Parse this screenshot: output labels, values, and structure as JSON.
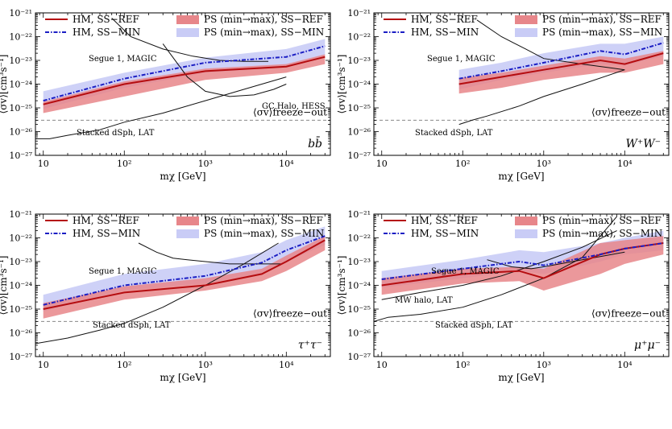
{
  "figure": {
    "xlabel": "mχ [GeV]",
    "ylabel": "⟨σv⟩[cm³s⁻¹]"
  },
  "legend": {
    "hm_ref": "HM, SS−REF",
    "hm_min": "HM, SS−MIN",
    "ps_ref": "PS (min→max), SS−REF",
    "ps_min": "PS (min→max), SS−MIN"
  },
  "colors": {
    "ref_line": "#b50d10",
    "min_line": "#1b1ec4",
    "ref_band": "#e7868a",
    "min_band": "#c9ccf6",
    "limit": "#111111",
    "freeze": "#888888"
  },
  "ticks": {
    "x": [
      "10",
      "10²",
      "10³",
      "10⁴"
    ],
    "y": [
      "10⁻²⁷",
      "10⁻²⁶",
      "10⁻²⁵",
      "10⁻²⁴",
      "10⁻²³",
      "10⁻²²",
      "10⁻²¹"
    ]
  },
  "freeze_label": "⟨σv⟩freeze−out",
  "chart_data": [
    {
      "type": "line",
      "title": "bb̄",
      "channel": "bb̄",
      "xlabel": "mχ [GeV]",
      "ylabel": "⟨σv⟩[cm³s⁻¹]",
      "xscale": "log",
      "yscale": "log",
      "xlim": [
        8,
        35000
      ],
      "ylim": [
        1e-27,
        1e-21
      ],
      "freeze_out": 3e-26,
      "series": [
        {
          "name": "HM, SS−REF",
          "style": "ref",
          "x": [
            10,
            100,
            1000,
            10000,
            30000
          ],
          "y": [
            1.4e-25,
            1e-24,
            3.5e-24,
            5.5e-24,
            1.4e-23
          ]
        },
        {
          "name": "HM, SS−MIN",
          "style": "min",
          "x": [
            10,
            100,
            1000,
            10000,
            30000
          ],
          "y": [
            2e-25,
            1.7e-24,
            8e-24,
            1.4e-23,
            4e-23
          ]
        }
      ],
      "bands": [
        {
          "name": "PS (min→max), SS−MIN",
          "style": "min",
          "x": [
            10,
            100,
            1000,
            10000,
            30000
          ],
          "low": [
            9e-26,
            7e-25,
            3e-24,
            5e-24,
            1.5e-23
          ],
          "high": [
            5e-25,
            3e-24,
            1.3e-23,
            3e-23,
            8e-23
          ]
        },
        {
          "name": "PS (min→max), SS−REF",
          "style": "ref",
          "x": [
            10,
            100,
            1000,
            10000,
            30000
          ],
          "low": [
            6e-26,
            3e-25,
            1.5e-24,
            3e-24,
            7e-24
          ],
          "high": [
            1.8e-25,
            1.3e-24,
            4.5e-24,
            7e-24,
            1.8e-23
          ]
        }
      ],
      "limits": [
        {
          "name": "Segue 1, MAGIC",
          "x": [
            70,
            120,
            300,
            700,
            1500,
            3000,
            6000
          ],
          "y": [
            6e-22,
            1e-22,
            3e-23,
            1.5e-23,
            1e-23,
            9e-24,
            9e-24
          ]
        },
        {
          "name": "GC Halo, HESS",
          "x": [
            300,
            600,
            1000,
            2000,
            4000,
            7000,
            10000
          ],
          "y": [
            5e-23,
            2e-24,
            5e-25,
            3e-25,
            3.5e-25,
            6e-25,
            1e-24
          ]
        },
        {
          "name": "Stacked dSph, LAT",
          "x": [
            8,
            12,
            20,
            50,
            100,
            300,
            1000,
            3000,
            10000
          ],
          "y": [
            5e-27,
            5e-27,
            7e-27,
            1.2e-26,
            2.5e-26,
            6e-26,
            2e-25,
            6e-25,
            2e-24
          ]
        }
      ],
      "annotations": [
        "Segue 1, MAGIC",
        "GC Halo, HESS",
        "Stacked dSph, LAT"
      ]
    },
    {
      "type": "line",
      "title": "W⁺W⁻",
      "channel": "W⁺W⁻",
      "xlabel": "mχ [GeV]",
      "ylabel": "⟨σv⟩[cm³s⁻¹]",
      "xscale": "log",
      "yscale": "log",
      "xlim": [
        8,
        35000
      ],
      "ylim": [
        1e-27,
        1e-21
      ],
      "freeze_out": 3e-26,
      "series": [
        {
          "name": "HM, SS−REF",
          "style": "ref",
          "x": [
            90,
            300,
            1000,
            5000,
            10000,
            30000
          ],
          "y": [
            1e-24,
            2e-24,
            4e-24,
            1e-23,
            7e-24,
            2e-23
          ]
        },
        {
          "name": "HM, SS−MIN",
          "style": "min",
          "x": [
            90,
            300,
            1000,
            5000,
            10000,
            30000
          ],
          "y": [
            1.7e-24,
            3.5e-24,
            8e-24,
            2.5e-23,
            1.8e-23,
            5.5e-23
          ]
        }
      ],
      "bands": [
        {
          "name": "PS (min→max), SS−MIN",
          "style": "min",
          "x": [
            90,
            300,
            1000,
            5000,
            10000,
            30000
          ],
          "low": [
            6e-25,
            1.5e-24,
            3e-24,
            7e-24,
            6e-24,
            1.5e-23
          ],
          "high": [
            4e-24,
            8e-24,
            2e-23,
            5e-23,
            5e-23,
            1e-22
          ]
        },
        {
          "name": "PS (min→max), SS−REF",
          "style": "ref",
          "x": [
            90,
            300,
            1000,
            5000,
            10000,
            30000
          ],
          "low": [
            4e-25,
            7e-25,
            1.5e-24,
            3e-24,
            3e-24,
            7e-24
          ],
          "high": [
            1.8e-24,
            3e-24,
            6e-24,
            1.5e-23,
            1.2e-23,
            2.5e-23
          ]
        }
      ],
      "limits": [
        {
          "name": "Segue 1, MAGIC",
          "x": [
            150,
            300,
            600,
            1000,
            3000,
            10000
          ],
          "y": [
            5e-22,
            1e-22,
            3e-23,
            1.2e-23,
            7e-24,
            4e-24
          ]
        },
        {
          "name": "Stacked dSph, LAT",
          "x": [
            90,
            130,
            200,
            500,
            1000,
            3000,
            10000
          ],
          "y": [
            2e-26,
            3e-26,
            4.5e-26,
            1.2e-25,
            3e-25,
            1e-24,
            4e-24
          ]
        }
      ],
      "annotations": [
        "Segue 1, MAGIC",
        "Stacked dSph, LAT"
      ]
    },
    {
      "type": "line",
      "title": "τ⁺τ⁻",
      "channel": "τ⁺τ⁻",
      "xlabel": "mχ [GeV]",
      "ylabel": "⟨σv⟩[cm³s⁻¹]",
      "xscale": "log",
      "yscale": "log",
      "xlim": [
        8,
        35000
      ],
      "ylim": [
        1e-27,
        1e-21
      ],
      "freeze_out": 3e-26,
      "series": [
        {
          "name": "HM, SS−REF",
          "style": "ref",
          "x": [
            10,
            100,
            1000,
            5000,
            10000,
            30000
          ],
          "y": [
            1e-25,
            5e-25,
            1e-24,
            3e-24,
            1e-23,
            8e-23
          ]
        },
        {
          "name": "HM, SS−MIN",
          "style": "min",
          "x": [
            10,
            100,
            1000,
            5000,
            10000,
            30000
          ],
          "y": [
            1.5e-25,
            1e-24,
            2.5e-24,
            9e-24,
            3e-23,
            1.2e-22
          ]
        }
      ],
      "bands": [
        {
          "name": "PS (min→max), SS−MIN",
          "style": "min",
          "x": [
            10,
            100,
            1000,
            5000,
            10000,
            30000
          ],
          "low": [
            8e-26,
            6e-25,
            1.2e-24,
            3e-24,
            1e-23,
            5e-23
          ],
          "high": [
            4e-25,
            3e-24,
            8e-24,
            2.5e-23,
            8e-23,
            3e-22
          ]
        },
        {
          "name": "PS (min→max), SS−REF",
          "style": "ref",
          "x": [
            10,
            100,
            1000,
            5000,
            10000,
            30000
          ],
          "low": [
            4e-26,
            2.5e-25,
            6e-25,
            1.5e-24,
            4e-24,
            3e-23
          ],
          "high": [
            1.8e-25,
            9e-25,
            2e-24,
            5e-24,
            1.8e-23,
            1.2e-22
          ]
        }
      ],
      "limits": [
        {
          "name": "Segue 1, MAGIC",
          "x": [
            150,
            250,
            400,
            600,
            1000,
            2000,
            5000,
            9000
          ],
          "y": [
            6e-23,
            2.5e-23,
            1.4e-23,
            1.2e-23,
            1e-23,
            8e-24,
            8e-24,
            8e-24
          ]
        },
        {
          "name": "Stacked dSph, LAT",
          "x": [
            8,
            20,
            50,
            100,
            300,
            1000,
            3000,
            8000
          ],
          "y": [
            3.5e-27,
            6e-27,
            1.3e-26,
            2.5e-26,
            1.2e-25,
            1e-24,
            8e-24,
            6e-23
          ]
        }
      ],
      "annotations": [
        "Segue 1, MAGIC",
        "Stacked dSph, LAT"
      ]
    },
    {
      "type": "line",
      "title": "μ⁺μ⁻",
      "channel": "μ⁺μ⁻",
      "xlabel": "mχ [GeV]",
      "ylabel": "⟨σv⟩[cm³s⁻¹]",
      "xscale": "log",
      "yscale": "log",
      "xlim": [
        8,
        35000
      ],
      "ylim": [
        1e-27,
        1e-21
      ],
      "freeze_out": 3e-26,
      "series": [
        {
          "name": "HM, SS−REF",
          "style": "ref",
          "x": [
            10,
            100,
            500,
            1000,
            5000,
            10000,
            30000
          ],
          "y": [
            1e-24,
            3e-24,
            4e-24,
            2e-24,
            2e-23,
            3.5e-23,
            6e-23
          ]
        },
        {
          "name": "HM, SS−MIN",
          "style": "min",
          "x": [
            10,
            100,
            500,
            1000,
            5000,
            10000,
            30000
          ],
          "y": [
            1.8e-24,
            5e-24,
            1e-23,
            7e-24,
            2e-23,
            3.5e-23,
            6e-23
          ]
        }
      ],
      "bands": [
        {
          "name": "PS (min→max), SS−MIN",
          "style": "min",
          "x": [
            10,
            100,
            500,
            1000,
            5000,
            10000,
            30000
          ],
          "low": [
            8e-25,
            2e-24,
            4e-24,
            3e-24,
            1e-23,
            2e-23,
            3e-23
          ],
          "high": [
            4e-24,
            1.2e-23,
            3e-23,
            2.5e-23,
            6e-23,
            1e-22,
            2e-22
          ]
        },
        {
          "name": "PS (min→max), SS−REF",
          "style": "ref",
          "x": [
            10,
            100,
            500,
            1000,
            5000,
            10000,
            30000
          ],
          "low": [
            4e-25,
            1.2e-24,
            1.5e-24,
            6e-25,
            3e-24,
            8e-24,
            2e-23
          ],
          "high": [
            2e-24,
            5e-24,
            6e-24,
            5e-24,
            6e-23,
            8e-23,
            1.2e-22
          ]
        }
      ],
      "limits": [
        {
          "name": "Segue 1, MAGIC",
          "x": [
            200,
            400,
            700,
            1000,
            3000,
            10000
          ],
          "y": [
            1.2e-23,
            6e-24,
            5e-24,
            6e-24,
            1.2e-23,
            2.5e-23
          ]
        },
        {
          "name": "MW halo, LAT",
          "x": [
            10,
            30,
            100,
            300,
            1000,
            3000,
            8000
          ],
          "y": [
            2.5e-25,
            5e-25,
            1e-24,
            2.5e-24,
            1e-23,
            4e-23,
            2e-22
          ]
        },
        {
          "name": "Stacked dSph, LAT",
          "x": [
            8,
            12,
            30,
            100,
            300,
            1000,
            3000,
            8000
          ],
          "y": [
            3e-26,
            4.5e-26,
            6e-26,
            1.2e-25,
            4e-25,
            2e-24,
            1.5e-23,
            8e-22
          ]
        }
      ],
      "annotations": [
        "Segue 1, MAGIC",
        "MW halo, LAT",
        "Stacked dSph, LAT"
      ]
    }
  ]
}
